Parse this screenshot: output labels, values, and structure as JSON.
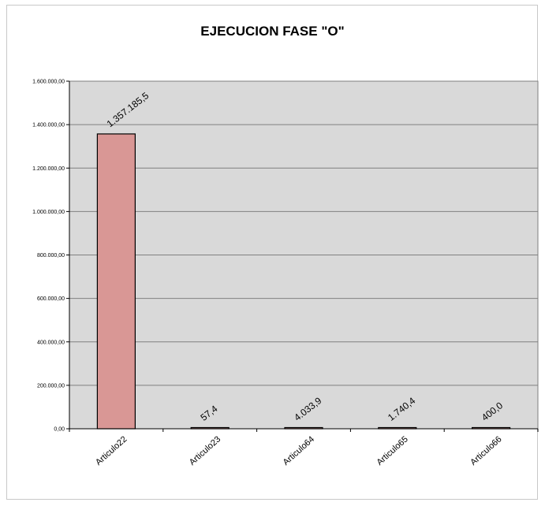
{
  "chart_data": {
    "type": "bar",
    "title": "EJECUCION FASE \"O\"",
    "categories": [
      "Articulo22",
      "Articulo23",
      "Articulo64",
      "Articulo65",
      "Articulo66"
    ],
    "values": [
      1357185.5,
      57.4,
      4033.9,
      1740.4,
      400.0
    ],
    "data_labels": [
      "1.357.185,5",
      "57,4",
      "4.033,9",
      "1.740,4",
      "400,0"
    ],
    "ylim": [
      0,
      1600000
    ],
    "yticks": [
      0,
      200000,
      400000,
      600000,
      800000,
      1000000,
      1200000,
      1400000,
      1600000
    ],
    "ytick_labels": [
      "0,00",
      "200.000,00",
      "400.000,00",
      "600.000,00",
      "800.000,00",
      "1.000.000,00",
      "1.200.000,00",
      "1.400.000,00",
      "1.600.000,00"
    ],
    "grid": true,
    "legend": false,
    "colors": {
      "bar": "#d99795",
      "plot_bg": "#d9d9d9",
      "grid": "#808080"
    }
  }
}
